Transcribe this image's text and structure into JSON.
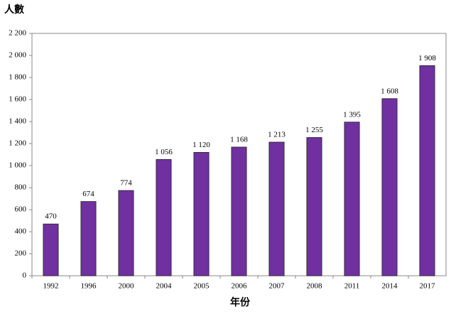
{
  "chart_data": {
    "type": "bar",
    "y_label": "人數",
    "x_label": "年份",
    "categories": [
      "1992",
      "1996",
      "2000",
      "2004",
      "2005",
      "2006",
      "2007",
      "2008",
      "2011",
      "2014",
      "2017"
    ],
    "values": [
      470,
      674,
      774,
      1056,
      1120,
      1168,
      1213,
      1255,
      1395,
      1608,
      1908
    ],
    "value_labels": [
      "470",
      "674",
      "774",
      "1 056",
      "1 120",
      "1 168",
      "1 213",
      "1 255",
      "1 395",
      "1 608",
      "1 908"
    ],
    "color": "#7030a0",
    "ylim": [
      0,
      2200
    ],
    "yticks": [
      0,
      200,
      400,
      600,
      800,
      {
        "value": 1000,
        "label": "1 000"
      },
      {
        "value": 1200,
        "label": "1 200"
      },
      {
        "value": 1400,
        "label": "1 400"
      },
      {
        "value": 1600,
        "label": "1 600"
      },
      {
        "value": 1800,
        "label": "1 800"
      },
      {
        "value": 2000,
        "label": "2 000"
      },
      {
        "value": 2200,
        "label": "2 200"
      }
    ],
    "grid": false
  }
}
